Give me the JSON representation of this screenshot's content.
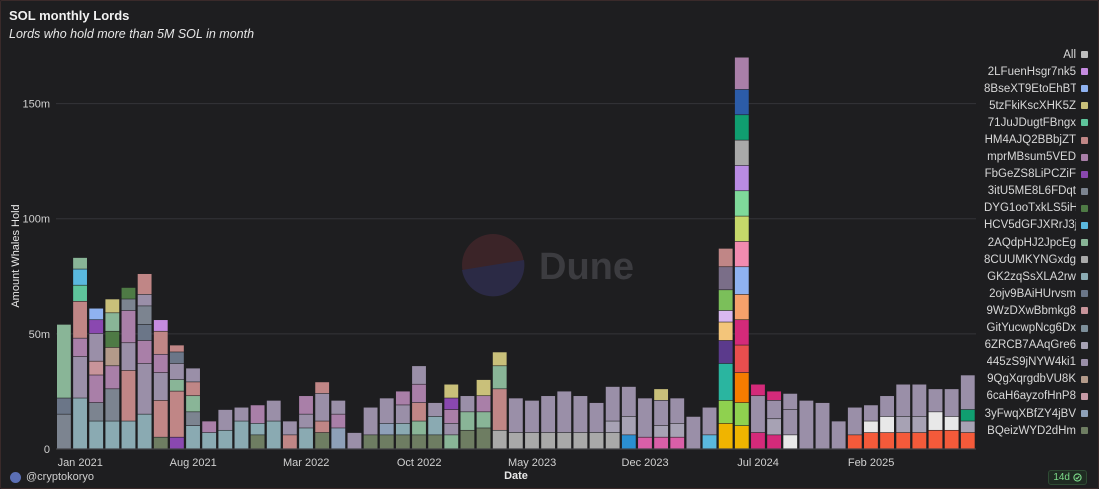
{
  "header": {
    "title": "SOL monthly Lords",
    "subtitle": "Lords who hold more than 5M SOL in month"
  },
  "watermark": "Dune",
  "footer": {
    "user": "@cryptokoryo",
    "refresh_badge": "14d"
  },
  "legend": {
    "all_label": "All",
    "all_color": "#bdbdbd",
    "items": [
      {
        "label": "2LFuenHsgr7nk5",
        "color": "#c58be0"
      },
      {
        "label": "8BseXT9EtoEhBT",
        "color": "#8fb2f0"
      },
      {
        "label": "5tzFkiKscXHK5Z",
        "color": "#c9c07a"
      },
      {
        "label": "71JuJDugtFBngx",
        "color": "#5ec49b"
      },
      {
        "label": "HM4AJQ2BBbjZT",
        "color": "#c08686"
      },
      {
        "label": "mprMBsum5VED",
        "color": "#a97fa8"
      },
      {
        "label": "FbGeZS8LiPCZiF",
        "color": "#8a48b0"
      },
      {
        "label": "3itU5ME8L6FDqt",
        "color": "#7c8490"
      },
      {
        "label": "DYG1ooTxkLS5iH",
        "color": "#4e7a45"
      },
      {
        "label": "HCV5dGFJXRrJ3j",
        "color": "#5ab8de"
      },
      {
        "label": "2AQdpHJ2JpcEg",
        "color": "#89b597"
      },
      {
        "label": "8CUUMKYNGxdg",
        "color": "#a9a9a9"
      },
      {
        "label": "GK2zqSsXLA2rw",
        "color": "#8aaab2"
      },
      {
        "label": "2ojv9BAiHUrvsm",
        "color": "#6b7688"
      },
      {
        "label": "9WzDXwBbmkg8",
        "color": "#c8949a"
      },
      {
        "label": "GitYucwpNcg6Dx",
        "color": "#7d8f9a"
      },
      {
        "label": "6ZRCB7AAqGre6",
        "color": "#a7a2b4"
      },
      {
        "label": "445zS9jNYW4ki1",
        "color": "#9a8fa8"
      },
      {
        "label": "9QgXqrgdbVU8K",
        "color": "#b39a8a"
      },
      {
        "label": "6caH6ayzofHnP8",
        "color": "#c79aa6"
      },
      {
        "label": "3yFwqXBfZY4jBV",
        "color": "#8ea0b8"
      },
      {
        "label": "BQeizWYD2dHm",
        "color": "#6e7d62"
      }
    ]
  },
  "chart_data": {
    "type": "bar",
    "stacked": true,
    "xlabel": "Date",
    "ylabel": "Amount Whales Hold",
    "ylim": [
      0,
      175000000
    ],
    "yticks": [
      {
        "v": 0,
        "label": "0"
      },
      {
        "v": 50000000,
        "label": "50m"
      },
      {
        "v": 100000000,
        "label": "100m"
      },
      {
        "v": 150000000,
        "label": "150m"
      }
    ],
    "xticks": [
      {
        "i": 1,
        "label": "Jan 2021"
      },
      {
        "i": 8,
        "label": "Aug 2021"
      },
      {
        "i": 15,
        "label": "Mar 2022"
      },
      {
        "i": 22,
        "label": "Oct 2022"
      },
      {
        "i": 29,
        "label": "May 2023"
      },
      {
        "i": 36,
        "label": "Dec 2023"
      },
      {
        "i": 43,
        "label": "Jul 2024"
      },
      {
        "i": 50,
        "label": "Feb 2025"
      }
    ],
    "grid": true,
    "legend_position": "right",
    "months": [
      "2020-12",
      "2021-01",
      "2021-02",
      "2021-03",
      "2021-04",
      "2021-05",
      "2021-06",
      "2021-07",
      "2021-08",
      "2021-09",
      "2021-10",
      "2021-11",
      "2021-12",
      "2022-01",
      "2022-02",
      "2022-03",
      "2022-04",
      "2022-05",
      "2022-06",
      "2022-07",
      "2022-08",
      "2022-09",
      "2022-10",
      "2022-11",
      "2022-12",
      "2023-01",
      "2023-02",
      "2023-03",
      "2023-04",
      "2023-05",
      "2023-06",
      "2023-07",
      "2023-08",
      "2023-09",
      "2023-10",
      "2023-11",
      "2023-12",
      "2024-01",
      "2024-02",
      "2024-03",
      "2024-04",
      "2024-05",
      "2024-06",
      "2024-07",
      "2024-08",
      "2024-09",
      "2024-10",
      "2024-11",
      "2024-12",
      "2025-01",
      "2025-02",
      "2025-03",
      "2025-04",
      "2025-05",
      "2025-06",
      "2025-07",
      "2025-08",
      "2025-09"
    ],
    "stacks": [
      [
        [
          15000000,
          "#7c8490"
        ],
        [
          7000000,
          "#6b7688"
        ],
        [
          32000000,
          "#89b597"
        ]
      ],
      [
        [
          22000000,
          "#8aaab2"
        ],
        [
          18000000,
          "#9a8fa8"
        ],
        [
          8000000,
          "#a97fa8"
        ],
        [
          16000000,
          "#c08686"
        ],
        [
          7000000,
          "#5ec49b"
        ],
        [
          7000000,
          "#5ab8de"
        ],
        [
          5000000,
          "#89b597"
        ]
      ],
      [
        [
          12000000,
          "#8aaab2"
        ],
        [
          8000000,
          "#7c8490"
        ],
        [
          12000000,
          "#a97fa8"
        ],
        [
          6000000,
          "#c8949a"
        ],
        [
          12000000,
          "#9a8fa8"
        ],
        [
          6000000,
          "#8a48b0"
        ],
        [
          5000000,
          "#8fb2f0"
        ]
      ],
      [
        [
          12000000,
          "#8aaab2"
        ],
        [
          14000000,
          "#7c8490"
        ],
        [
          10000000,
          "#a97fa8"
        ],
        [
          8000000,
          "#b39a8a"
        ],
        [
          7000000,
          "#4e7a45"
        ],
        [
          8000000,
          "#89b597"
        ],
        [
          6000000,
          "#c9c07a"
        ]
      ],
      [
        [
          12000000,
          "#8aaab2"
        ],
        [
          22000000,
          "#c08686"
        ],
        [
          12000000,
          "#9a8fa8"
        ],
        [
          14000000,
          "#a97fa8"
        ],
        [
          5000000,
          "#7c8490"
        ],
        [
          5000000,
          "#4e7a45"
        ]
      ],
      [
        [
          15000000,
          "#8aaab2"
        ],
        [
          22000000,
          "#9a8fa8"
        ],
        [
          10000000,
          "#a97fa8"
        ],
        [
          7000000,
          "#6b7688"
        ],
        [
          8000000,
          "#7c8490"
        ],
        [
          5000000,
          "#9a8fa8"
        ],
        [
          9000000,
          "#c08686"
        ]
      ],
      [
        [
          5000000,
          "#6e7d62"
        ],
        [
          16000000,
          "#c08686"
        ],
        [
          12000000,
          "#9a8fa8"
        ],
        [
          8000000,
          "#a97fa8"
        ],
        [
          10000000,
          "#c08686"
        ],
        [
          5000000,
          "#c58be0"
        ]
      ],
      [
        [
          5000000,
          "#8a48b0"
        ],
        [
          20000000,
          "#c08686"
        ],
        [
          5000000,
          "#89b597"
        ],
        [
          7000000,
          "#9a8fa8"
        ],
        [
          5000000,
          "#6b7688"
        ],
        [
          3000000,
          "#c08686"
        ]
      ],
      [
        [
          10000000,
          "#8aaab2"
        ],
        [
          6000000,
          "#7c8490"
        ],
        [
          7000000,
          "#89b597"
        ],
        [
          6000000,
          "#c08686"
        ],
        [
          6000000,
          "#9a8fa8"
        ]
      ],
      [
        [
          7000000,
          "#8aaab2"
        ],
        [
          5000000,
          "#a97fa8"
        ]
      ],
      [
        [
          8000000,
          "#8aaab2"
        ],
        [
          9000000,
          "#9a8fa8"
        ]
      ],
      [
        [
          12000000,
          "#8aaab2"
        ],
        [
          6000000,
          "#9a8fa8"
        ]
      ],
      [
        [
          6000000,
          "#6e7d62"
        ],
        [
          5000000,
          "#8aaab2"
        ],
        [
          8000000,
          "#a97fa8"
        ]
      ],
      [
        [
          12000000,
          "#8aaab2"
        ],
        [
          9000000,
          "#9a8fa8"
        ]
      ],
      [
        [
          6000000,
          "#c08686"
        ],
        [
          6000000,
          "#9a8fa8"
        ]
      ],
      [
        [
          9000000,
          "#8aaab2"
        ],
        [
          6000000,
          "#9a8fa8"
        ],
        [
          8000000,
          "#a97fa8"
        ]
      ],
      [
        [
          7000000,
          "#6e7d62"
        ],
        [
          5000000,
          "#c08686"
        ],
        [
          12000000,
          "#9a8fa8"
        ],
        [
          5000000,
          "#c08686"
        ]
      ],
      [
        [
          9000000,
          "#8ea0b8"
        ],
        [
          6000000,
          "#a97fa8"
        ],
        [
          6000000,
          "#9a8fa8"
        ]
      ],
      [
        [
          7000000,
          "#9a8fa8"
        ]
      ],
      [
        [
          6000000,
          "#6e7d62"
        ],
        [
          12000000,
          "#9a8fa8"
        ]
      ],
      [
        [
          6000000,
          "#6e7d62"
        ],
        [
          5000000,
          "#8ea0b8"
        ],
        [
          11000000,
          "#9a8fa8"
        ]
      ],
      [
        [
          6000000,
          "#6e7d62"
        ],
        [
          5000000,
          "#8aaab2"
        ],
        [
          8000000,
          "#9a8fa8"
        ],
        [
          6000000,
          "#a97fa8"
        ]
      ],
      [
        [
          6000000,
          "#6e7d62"
        ],
        [
          6000000,
          "#89b597"
        ],
        [
          8000000,
          "#c08686"
        ],
        [
          8000000,
          "#a97fa8"
        ],
        [
          8000000,
          "#9a8fa8"
        ]
      ],
      [
        [
          6000000,
          "#6e7d62"
        ],
        [
          8000000,
          "#8aaab2"
        ],
        [
          6000000,
          "#9a8fa8"
        ]
      ],
      [
        [
          6000000,
          "#89b597"
        ],
        [
          5000000,
          "#9a8fa8"
        ],
        [
          6000000,
          "#a97fa8"
        ],
        [
          5000000,
          "#8a48b0"
        ],
        [
          6000000,
          "#c9c07a"
        ]
      ],
      [
        [
          8000000,
          "#6e7d62"
        ],
        [
          8000000,
          "#89b597"
        ],
        [
          7000000,
          "#9a8fa8"
        ]
      ],
      [
        [
          9000000,
          "#6e7d62"
        ],
        [
          7000000,
          "#89b597"
        ],
        [
          7000000,
          "#a97fa8"
        ],
        [
          7000000,
          "#c9c07a"
        ]
      ],
      [
        [
          8000000,
          "#a9a9a9"
        ],
        [
          18000000,
          "#c08686"
        ],
        [
          10000000,
          "#89b597"
        ],
        [
          6000000,
          "#c9c07a"
        ]
      ],
      [
        [
          7000000,
          "#a9a9a9"
        ],
        [
          15000000,
          "#9a8fa8"
        ]
      ],
      [
        [
          7000000,
          "#a9a9a9"
        ],
        [
          14000000,
          "#9a8fa8"
        ]
      ],
      [
        [
          7000000,
          "#a9a9a9"
        ],
        [
          16000000,
          "#9a8fa8"
        ]
      ],
      [
        [
          7000000,
          "#a9a9a9"
        ],
        [
          18000000,
          "#9a8fa8"
        ]
      ],
      [
        [
          7000000,
          "#a9a9a9"
        ],
        [
          16000000,
          "#9a8fa8"
        ]
      ],
      [
        [
          7000000,
          "#a9a9a9"
        ],
        [
          13000000,
          "#9a8fa8"
        ]
      ],
      [
        [
          7000000,
          "#a9a9a9"
        ],
        [
          5000000,
          "#a7a2b4"
        ],
        [
          15000000,
          "#9a8fa8"
        ]
      ],
      [
        [
          6000000,
          "#2b8fd1"
        ],
        [
          8000000,
          "#a7a2b4"
        ],
        [
          13000000,
          "#9a8fa8"
        ]
      ],
      [
        [
          5000000,
          "#d95fa8"
        ],
        [
          17000000,
          "#9a8fa8"
        ]
      ],
      [
        [
          5000000,
          "#d95fa8"
        ],
        [
          5000000,
          "#a7a2b4"
        ],
        [
          11000000,
          "#9a8fa8"
        ],
        [
          5000000,
          "#c9c07a"
        ]
      ],
      [
        [
          5000000,
          "#d95fa8"
        ],
        [
          6000000,
          "#a7a2b4"
        ],
        [
          11000000,
          "#9a8fa8"
        ]
      ],
      [
        [
          14000000,
          "#9a8fa8"
        ]
      ],
      [
        [
          6000000,
          "#5ab8de"
        ],
        [
          12000000,
          "#9a8fa8"
        ]
      ],
      [
        [
          11000000,
          "#f0b400"
        ],
        [
          10000000,
          "#8fd14f"
        ],
        [
          16000000,
          "#2ab5a0"
        ],
        [
          10000000,
          "#5b3a8c"
        ],
        [
          8000000,
          "#f3c57a"
        ],
        [
          5000000,
          "#d9b8f0"
        ],
        [
          9000000,
          "#7bbf5a"
        ],
        [
          10000000,
          "#7a6e88"
        ],
        [
          8000000,
          "#c08686"
        ]
      ],
      [
        [
          10000000,
          "#f0b400"
        ],
        [
          10000000,
          "#8fd14f"
        ],
        [
          13000000,
          "#f57c00"
        ],
        [
          12000000,
          "#e84e4e"
        ],
        [
          11000000,
          "#d42a7a"
        ],
        [
          11000000,
          "#f5a16b"
        ],
        [
          12000000,
          "#8fb2f0"
        ],
        [
          11000000,
          "#f28bb0"
        ],
        [
          11000000,
          "#c6d86a"
        ],
        [
          11000000,
          "#7fd99a"
        ],
        [
          11000000,
          "#b98be3"
        ],
        [
          11000000,
          "#a9a9a9"
        ],
        [
          11000000,
          "#109e70"
        ],
        [
          11000000,
          "#2c5ca8"
        ],
        [
          14000000,
          "#a97fa8"
        ]
      ],
      [
        [
          7000000,
          "#d42a7a"
        ],
        [
          16000000,
          "#9a8fa8"
        ],
        [
          5000000,
          "#d42a7a"
        ]
      ],
      [
        [
          6000000,
          "#d42a7a"
        ],
        [
          7000000,
          "#a7a2b4"
        ],
        [
          8000000,
          "#9a8fa8"
        ],
        [
          4000000,
          "#d42a7a"
        ]
      ],
      [
        [
          6000000,
          "#e8e8e8"
        ],
        [
          11000000,
          "#9a8fa8"
        ],
        [
          7000000,
          "#9a8fa8"
        ]
      ],
      [
        [
          21000000,
          "#9a8fa8"
        ]
      ],
      [
        [
          20000000,
          "#9a8fa8"
        ]
      ],
      [
        [
          12000000,
          "#9a8fa8"
        ]
      ],
      [
        [
          6000000,
          "#f45a3a"
        ],
        [
          12000000,
          "#9a8fa8"
        ]
      ],
      [
        [
          7000000,
          "#f45a3a"
        ],
        [
          5000000,
          "#e8e8e8"
        ],
        [
          7000000,
          "#9a8fa8"
        ]
      ],
      [
        [
          7000000,
          "#f45a3a"
        ],
        [
          7000000,
          "#e8e8e8"
        ],
        [
          9000000,
          "#9a8fa8"
        ]
      ],
      [
        [
          7000000,
          "#f45a3a"
        ],
        [
          7000000,
          "#a7a2b4"
        ],
        [
          14000000,
          "#9a8fa8"
        ]
      ],
      [
        [
          7000000,
          "#f45a3a"
        ],
        [
          7000000,
          "#a7a2b4"
        ],
        [
          14000000,
          "#9a8fa8"
        ]
      ],
      [
        [
          8000000,
          "#f45a3a"
        ],
        [
          8000000,
          "#e8e8e8"
        ],
        [
          10000000,
          "#9a8fa8"
        ]
      ],
      [
        [
          8000000,
          "#f45a3a"
        ],
        [
          6000000,
          "#e8e8e8"
        ],
        [
          12000000,
          "#9a8fa8"
        ]
      ],
      [
        [
          7000000,
          "#f45a3a"
        ],
        [
          5000000,
          "#a7a2b4"
        ],
        [
          5000000,
          "#109e70"
        ],
        [
          15000000,
          "#9a8fa8"
        ]
      ]
    ]
  }
}
